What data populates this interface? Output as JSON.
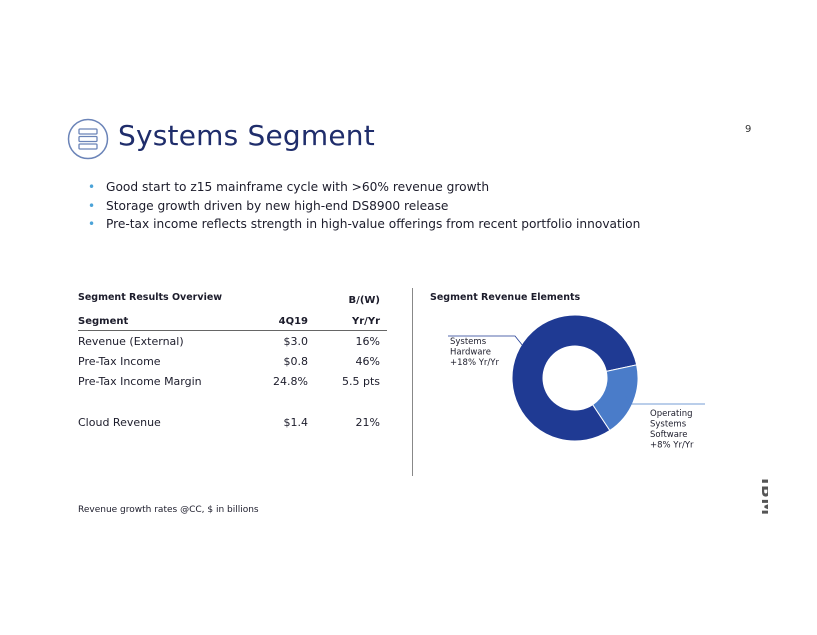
{
  "page": {
    "number": "9"
  },
  "header": {
    "title": "Systems Segment",
    "icon": "server-stack-icon"
  },
  "bullets": [
    "Good start to z15 mainframe cycle with >60% revenue growth",
    "Storage growth driven by new high-end DS8900 release",
    "Pre-tax income reflects strength in high-value offerings from recent portfolio innovation"
  ],
  "table": {
    "heading": "Segment Results Overview",
    "columns": [
      "Segment",
      "4Q19",
      "B/(W)",
      "Yr/Yr"
    ],
    "rows": [
      [
        "Revenue (External)",
        "$3.0",
        "16%"
      ],
      [
        "Pre-Tax Income",
        "$0.8",
        "46%"
      ],
      [
        "Pre-Tax Income Margin",
        "24.8%",
        "5.5 pts"
      ],
      [
        "Cloud Revenue",
        "$1.4",
        "21%"
      ]
    ]
  },
  "chart_data": {
    "type": "pie",
    "title": "Segment Revenue Elements",
    "categories": [
      "Systems Hardware",
      "Operating Systems Software"
    ],
    "values": [
      81,
      19
    ],
    "labels": [
      [
        "Systems",
        "Hardware",
        "+18% Yr/Yr"
      ],
      [
        "Operating",
        "Systems",
        "Software",
        "+8% Yr/Yr"
      ]
    ],
    "colors": [
      "#1f3a93",
      "#4a7cc9"
    ]
  },
  "footnote": "Revenue growth rates @CC, $ in billions",
  "logo": {
    "text": "IBM"
  },
  "colors": {
    "title": "#1f2d6b",
    "bullet": "#4ba3d8",
    "dark_blue": "#1f3a93",
    "light_blue": "#4a7cc9"
  }
}
